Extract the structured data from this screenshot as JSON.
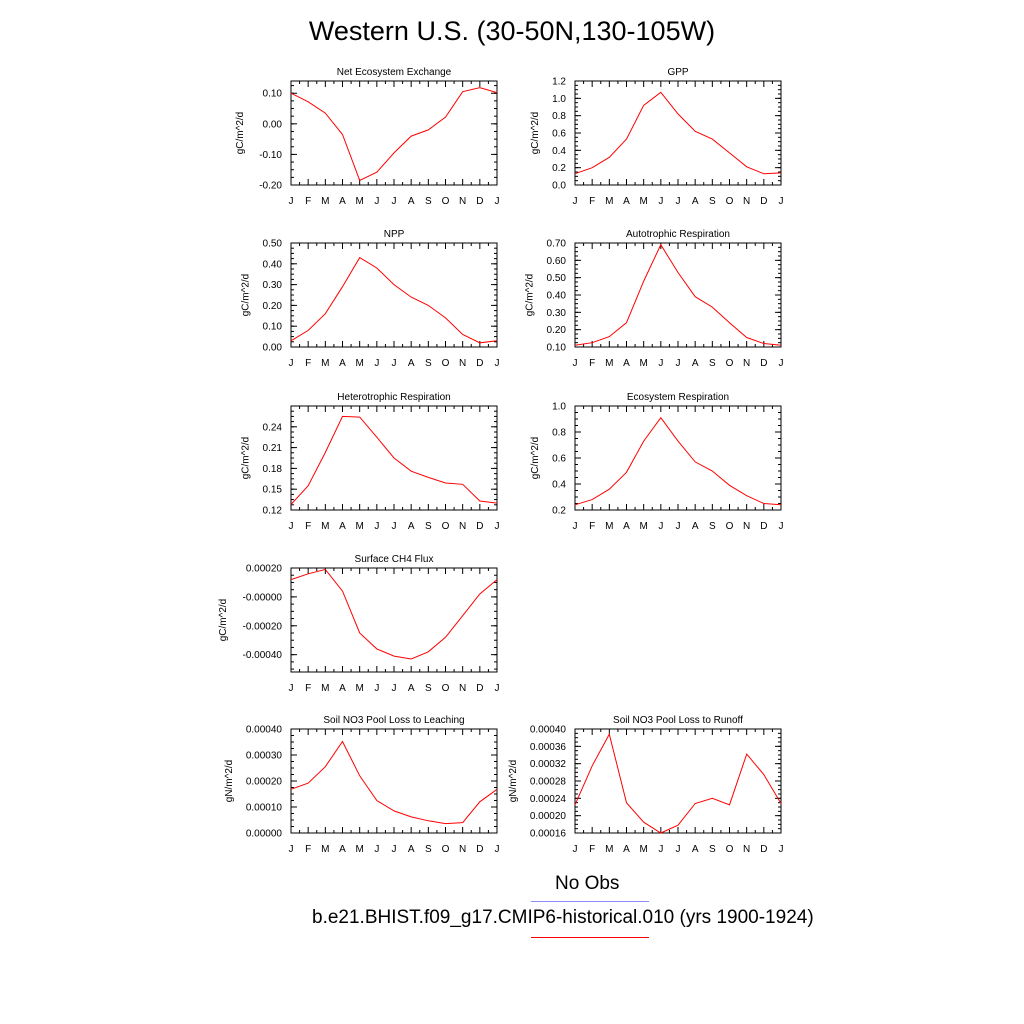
{
  "figure": {
    "title": "Western U.S. (30-50N,130-105W)",
    "months": [
      "J",
      "F",
      "M",
      "A",
      "M",
      "J",
      "J",
      "A",
      "S",
      "O",
      "N",
      "D",
      "J"
    ],
    "line_color": "#ff0000",
    "legend": [
      {
        "label": "No Obs",
        "color": "#8c8cff"
      },
      {
        "label": "b.e21.BHIST.f09_g17.CMIP6-historical.010 (yrs 1900-1924)",
        "color": "#ff0000"
      }
    ]
  },
  "chart_data": [
    {
      "type": "line",
      "title": "Net Ecosystem Exchange",
      "xlabel": "",
      "ylabel": "gC/m^2/d",
      "ylim": [
        -0.2,
        0.14
      ],
      "yticks": [
        "0.10",
        "0.00",
        "-0.10",
        "-0.20"
      ],
      "ytick_values": [
        0.1,
        0.0,
        -0.1,
        -0.2
      ],
      "values": [
        0.1,
        0.072,
        0.035,
        -0.035,
        -0.185,
        -0.158,
        -0.095,
        -0.04,
        -0.02,
        0.022,
        0.105,
        0.118,
        0.102
      ]
    },
    {
      "type": "line",
      "title": "GPP",
      "xlabel": "",
      "ylabel": "gC/m^2/d",
      "ylim": [
        0.0,
        1.2
      ],
      "yticks": [
        "1.2",
        "1.0",
        "0.8",
        "0.6",
        "0.4",
        "0.2",
        "0.0"
      ],
      "ytick_values": [
        1.2,
        1.0,
        0.8,
        0.6,
        0.4,
        0.2,
        0.0
      ],
      "values": [
        0.13,
        0.2,
        0.32,
        0.53,
        0.92,
        1.07,
        0.82,
        0.62,
        0.53,
        0.37,
        0.21,
        0.13,
        0.14
      ]
    },
    {
      "type": "line",
      "title": "NPP",
      "xlabel": "",
      "ylabel": "gC/m^2/d",
      "ylim": [
        0.0,
        0.5
      ],
      "yticks": [
        "0.50",
        "0.40",
        "0.30",
        "0.20",
        "0.10",
        "0.00"
      ],
      "ytick_values": [
        0.5,
        0.4,
        0.3,
        0.2,
        0.1,
        0.0
      ],
      "values": [
        0.03,
        0.08,
        0.16,
        0.29,
        0.43,
        0.38,
        0.3,
        0.24,
        0.2,
        0.14,
        0.06,
        0.02,
        0.03
      ]
    },
    {
      "type": "line",
      "title": "Autotrophic Respiration",
      "xlabel": "",
      "ylabel": "gC/m^2/d",
      "ylim": [
        0.1,
        0.7
      ],
      "yticks": [
        "0.70",
        "0.60",
        "0.50",
        "0.40",
        "0.30",
        "0.20",
        "0.10"
      ],
      "ytick_values": [
        0.7,
        0.6,
        0.5,
        0.4,
        0.3,
        0.2,
        0.1
      ],
      "values": [
        0.11,
        0.125,
        0.16,
        0.24,
        0.48,
        0.69,
        0.53,
        0.39,
        0.33,
        0.24,
        0.155,
        0.12,
        0.11
      ]
    },
    {
      "type": "line",
      "title": "Heterotrophic Respiration",
      "xlabel": "",
      "ylabel": "gC/m^2/d",
      "ylim": [
        0.12,
        0.27
      ],
      "yticks": [
        "0.24",
        "0.21",
        "0.18",
        "0.15",
        "0.12"
      ],
      "ytick_values": [
        0.24,
        0.21,
        0.18,
        0.15,
        0.12
      ],
      "values": [
        0.128,
        0.155,
        0.203,
        0.255,
        0.254,
        0.225,
        0.195,
        0.176,
        0.167,
        0.159,
        0.157,
        0.133,
        0.13
      ]
    },
    {
      "type": "line",
      "title": "Ecosystem Respiration",
      "xlabel": "",
      "ylabel": "gC/m^2/d",
      "ylim": [
        0.2,
        1.0
      ],
      "yticks": [
        "1.0",
        "0.8",
        "0.6",
        "0.4",
        "0.2"
      ],
      "ytick_values": [
        1.0,
        0.8,
        0.6,
        0.4,
        0.2
      ],
      "values": [
        0.24,
        0.28,
        0.36,
        0.49,
        0.73,
        0.91,
        0.73,
        0.57,
        0.5,
        0.39,
        0.31,
        0.25,
        0.24
      ]
    },
    {
      "type": "line",
      "title": "Surface CH4 Flux",
      "xlabel": "",
      "ylabel": "gC/m^2/d",
      "ylim": [
        -0.00052,
        0.0002
      ],
      "yticks": [
        "0.00020",
        "-0.00000",
        "-0.00020",
        "-0.00040"
      ],
      "ytick_values": [
        0.0002,
        0.0,
        -0.0002,
        -0.0004
      ],
      "values": [
        0.00012,
        0.00016,
        0.00019,
        4e-05,
        -0.00025,
        -0.00036,
        -0.00041,
        -0.00043,
        -0.00038,
        -0.00028,
        -0.00013,
        2e-05,
        0.00012
      ]
    },
    {
      "type": "line",
      "title": "Soil NO3 Pool Loss to Leaching",
      "xlabel": "",
      "ylabel": "gN/m^2/d",
      "ylim": [
        0.0,
        0.0004
      ],
      "yticks": [
        "0.00040",
        "0.00030",
        "0.00020",
        "0.00010",
        "0.00000"
      ],
      "ytick_values": [
        0.0004,
        0.0003,
        0.0002,
        0.0001,
        0.0
      ],
      "values": [
        0.000168,
        0.000192,
        0.000255,
        0.000352,
        0.00022,
        0.000125,
        8.5e-05,
        6.2e-05,
        4.7e-05,
        3.6e-05,
        4e-05,
        0.00012,
        0.000168
      ]
    },
    {
      "type": "line",
      "title": "Soil NO3 Pool Loss to Runoff",
      "xlabel": "",
      "ylabel": "gN/m^2/d",
      "ylim": [
        0.00016,
        0.0004
      ],
      "yticks": [
        "0.00040",
        "0.00036",
        "0.00032",
        "0.00028",
        "0.00024",
        "0.00020",
        "0.00016"
      ],
      "ytick_values": [
        0.0004,
        0.00036,
        0.00032,
        0.00028,
        0.00024,
        0.0002,
        0.00016
      ],
      "values": [
        0.000225,
        0.000315,
        0.000388,
        0.00023,
        0.000185,
        0.00016,
        0.000178,
        0.000228,
        0.00024,
        0.000225,
        0.000342,
        0.000295,
        0.000228
      ]
    }
  ]
}
